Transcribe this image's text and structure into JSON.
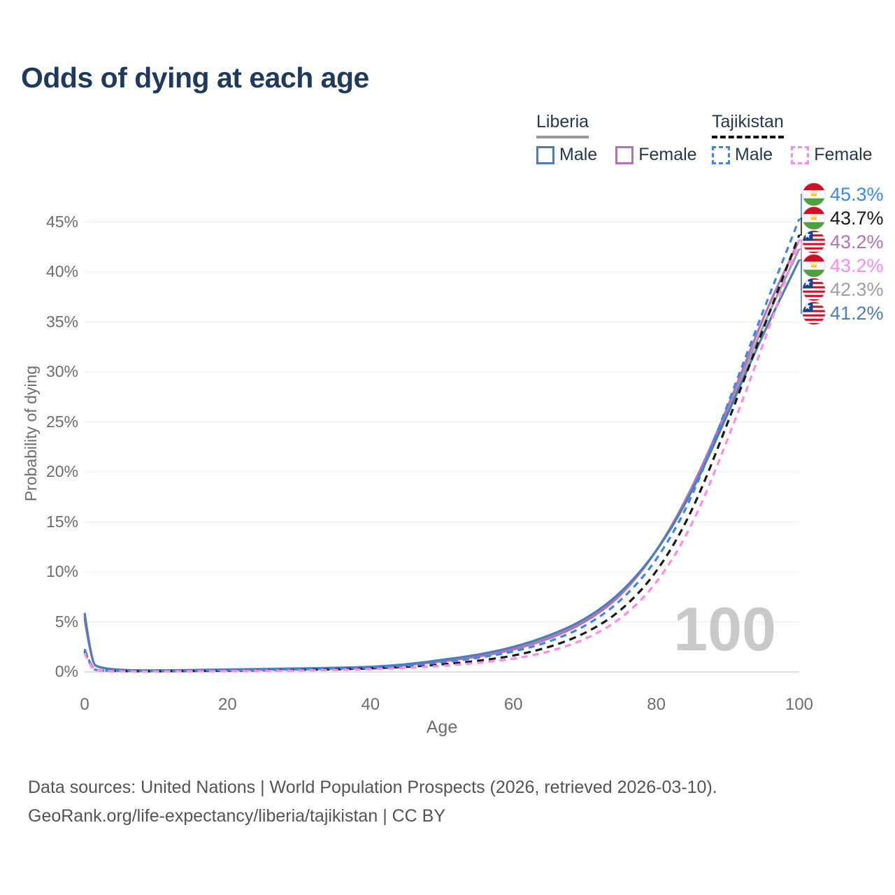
{
  "title": "Odds of dying at each age",
  "legend": {
    "groups": [
      {
        "country": "Liberia",
        "line_style": "solid",
        "underline_color": "#9a9a9a",
        "items": [
          {
            "label": "Male",
            "color": "#4d7cba",
            "dash": false
          },
          {
            "label": "Female",
            "color": "#b273b8",
            "dash": false
          }
        ]
      },
      {
        "country": "Tajikistan",
        "line_style": "dashed",
        "underline_color": "#111111",
        "items": [
          {
            "label": "Male",
            "color": "#3e86ea",
            "dash": true
          },
          {
            "label": "Female",
            "color": "#fb8aec",
            "dash": true
          }
        ]
      }
    ]
  },
  "chart_data": {
    "type": "line",
    "title": "Odds of dying at each age",
    "xlabel": "Age",
    "ylabel": "Probability of dying",
    "xlim": [
      0,
      100
    ],
    "ylim": [
      0,
      47
    ],
    "x_ticks": [
      0,
      20,
      40,
      60,
      80,
      100
    ],
    "y_ticks_pct": [
      0,
      5,
      10,
      15,
      20,
      25,
      30,
      35,
      40,
      45
    ],
    "grid": true,
    "legend_position": "top-right",
    "watermark": "100",
    "x": [
      0,
      1,
      2,
      5,
      10,
      15,
      20,
      25,
      30,
      35,
      40,
      45,
      50,
      55,
      60,
      65,
      70,
      75,
      80,
      85,
      90,
      95,
      100
    ],
    "series": [
      {
        "id": "liberia_both",
        "name": "Liberia (both sexes)",
        "color": "#9e9ea3",
        "dash": null,
        "values": [
          5.6,
          0.88,
          0.43,
          0.17,
          0.13,
          0.17,
          0.22,
          0.27,
          0.31,
          0.37,
          0.46,
          0.7,
          1.12,
          1.6,
          2.3,
          3.45,
          5.05,
          7.65,
          11.9,
          18.1,
          26.1,
          34.8,
          42.3
        ]
      },
      {
        "id": "liberia_female",
        "name": "Liberia Female",
        "color": "#b273b8",
        "dash": null,
        "values": [
          5.3,
          0.85,
          0.42,
          0.16,
          0.12,
          0.16,
          0.2,
          0.24,
          0.28,
          0.33,
          0.42,
          0.65,
          1.05,
          1.5,
          2.2,
          3.3,
          4.9,
          7.5,
          11.9,
          18.3,
          26.4,
          35.6,
          43.2
        ]
      },
      {
        "id": "liberia_male",
        "name": "Liberia Male",
        "color": "#4d7cba",
        "dash": null,
        "values": [
          5.9,
          0.9,
          0.45,
          0.18,
          0.14,
          0.19,
          0.25,
          0.3,
          0.35,
          0.41,
          0.5,
          0.75,
          1.2,
          1.7,
          2.45,
          3.6,
          5.2,
          7.8,
          11.9,
          17.9,
          25.8,
          33.9,
          41.2
        ]
      },
      {
        "id": "tajikistan_both",
        "name": "Tajikistan (both sexes)",
        "color": "#1a1a1a",
        "dash": "10 7",
        "values": [
          2.1,
          0.28,
          0.13,
          0.075,
          0.065,
          0.095,
          0.12,
          0.16,
          0.2,
          0.26,
          0.35,
          0.5,
          0.75,
          1.1,
          1.6,
          2.45,
          3.8,
          6.0,
          9.8,
          15.9,
          24.9,
          34.4,
          43.7
        ]
      },
      {
        "id": "tajikistan_male",
        "name": "Tajikistan Male",
        "color": "#3e86ea",
        "dash": "9 7",
        "values": [
          2.3,
          0.3,
          0.15,
          0.09,
          0.08,
          0.12,
          0.16,
          0.21,
          0.26,
          0.32,
          0.42,
          0.62,
          0.95,
          1.4,
          2.0,
          3.0,
          4.5,
          7.0,
          11.0,
          17.3,
          26.8,
          36.2,
          45.3
        ]
      },
      {
        "id": "tajikistan_female",
        "name": "Tajikistan Female",
        "color": "#fb8aec",
        "dash": "9 7",
        "values": [
          1.9,
          0.25,
          0.12,
          0.06,
          0.05,
          0.07,
          0.09,
          0.11,
          0.14,
          0.19,
          0.27,
          0.4,
          0.6,
          0.9,
          1.3,
          2.0,
          3.2,
          5.2,
          8.7,
          14.5,
          23.2,
          32.8,
          43.2
        ]
      }
    ],
    "end_labels": [
      {
        "series": "tajikistan_male",
        "text": "45.3%",
        "flag": "tajikistan"
      },
      {
        "series": "tajikistan_both",
        "text": "43.7%",
        "flag": "tajikistan"
      },
      {
        "series": "liberia_female",
        "text": "43.2%",
        "flag": "liberia"
      },
      {
        "series": "tajikistan_female",
        "text": "43.2%",
        "flag": "tajikistan"
      },
      {
        "series": "liberia_both",
        "text": "42.3%",
        "flag": "liberia"
      },
      {
        "series": "liberia_male",
        "text": "41.2%",
        "flag": "liberia"
      }
    ]
  },
  "footer": {
    "line1": "Data sources: United Nations | World Population Prospects (2026, retrieved 2026-03-10).",
    "line2": "GeoRank.org/life-expectancy/liberia/tajikistan | CC BY"
  },
  "colors": {
    "grid": "#ededed",
    "axis": "#d6d6d6",
    "title": "#1e3a5f",
    "tick_text": "#6e6e6e",
    "watermark": "#c9c9c9"
  }
}
